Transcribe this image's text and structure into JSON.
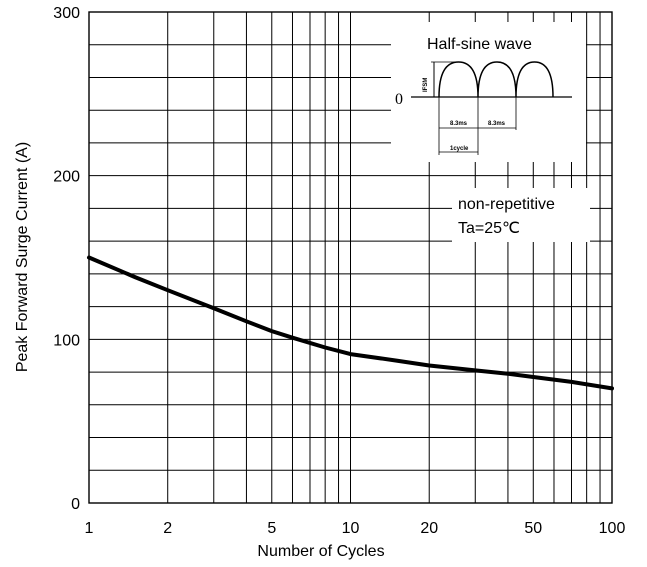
{
  "chart_data": {
    "type": "line",
    "title": "",
    "xlabel": "Number of Cycles",
    "ylabel": "Peak Forward Surge Current (A)",
    "x_scale": "log",
    "xlim": [
      1,
      100
    ],
    "ylim": [
      0,
      300
    ],
    "x_ticks": [
      {
        "value": 1,
        "label": "1"
      },
      {
        "value": 2,
        "label": "2"
      },
      {
        "value": 5,
        "label": "5"
      },
      {
        "value": 10,
        "label": "10"
      },
      {
        "value": 20,
        "label": "20"
      },
      {
        "value": 50,
        "label": "50"
      },
      {
        "value": 100,
        "label": "100"
      }
    ],
    "y_ticks": [
      {
        "value": 0,
        "label": "0"
      },
      {
        "value": 100,
        "label": "100"
      },
      {
        "value": 200,
        "label": "200"
      },
      {
        "value": 300,
        "label": "300"
      }
    ],
    "grid": true,
    "series": [
      {
        "x": [
          1,
          1.5,
          2,
          3,
          4,
          5,
          6,
          8,
          10,
          15,
          20,
          30,
          40,
          50,
          70,
          100
        ],
        "y": [
          150,
          138,
          130,
          119,
          111,
          105,
          101,
          95,
          91,
          87,
          84,
          81,
          79,
          77,
          74,
          70
        ]
      }
    ],
    "annotations": {
      "inset_title": "Half-sine wave",
      "inset_zero": "0",
      "inset_ifsm": "IFSM",
      "inset_period_1": "8.3ms",
      "inset_period_2": "8.3ms",
      "inset_cycle": "1cycle",
      "condition_line1": "non-repetitive",
      "condition_line2": "Ta=25℃"
    }
  }
}
